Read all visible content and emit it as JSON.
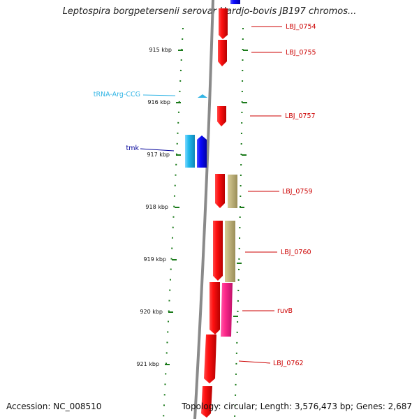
{
  "title": "Leptospira borgpetersenii serovar Hardjo-bovis JB197 chromos...",
  "footer": {
    "accession": "Accession: NC_008510",
    "summary": "Topology: circular; Length: 3,576,473 bp; Genes: 2,687"
  },
  "colors": {
    "backbone": "#888888",
    "tick": "#1a7a1a",
    "gene_red": "#ee0000",
    "gene_blue": "#0000ee",
    "gene_cyan": "#22bbee",
    "gene_tan": "#b5a86a",
    "gene_pink": "#ee2288",
    "label_red": "#cc0000",
    "label_blue": "#000099",
    "label_cyan": "#33b5e5"
  },
  "scale_labels": [
    "915 kbp",
    "916 kbp",
    "917 kbp",
    "918 kbp",
    "919 kbp",
    "920 kbp",
    "921 kbp"
  ],
  "feature_labels": [
    {
      "text": "LBJ_0754",
      "color": "label_red"
    },
    {
      "text": "LBJ_0755",
      "color": "label_red"
    },
    {
      "text": "LBJ_0757",
      "color": "label_red"
    },
    {
      "text": "LBJ_0759",
      "color": "label_red"
    },
    {
      "text": "LBJ_0760",
      "color": "label_red"
    },
    {
      "text": "ruvB",
      "color": "label_red"
    },
    {
      "text": "LBJ_0762",
      "color": "label_red"
    },
    {
      "text": "tRNA-Arg-CCG",
      "color": "label_cyan"
    },
    {
      "text": "tmk",
      "color": "label_blue"
    }
  ]
}
